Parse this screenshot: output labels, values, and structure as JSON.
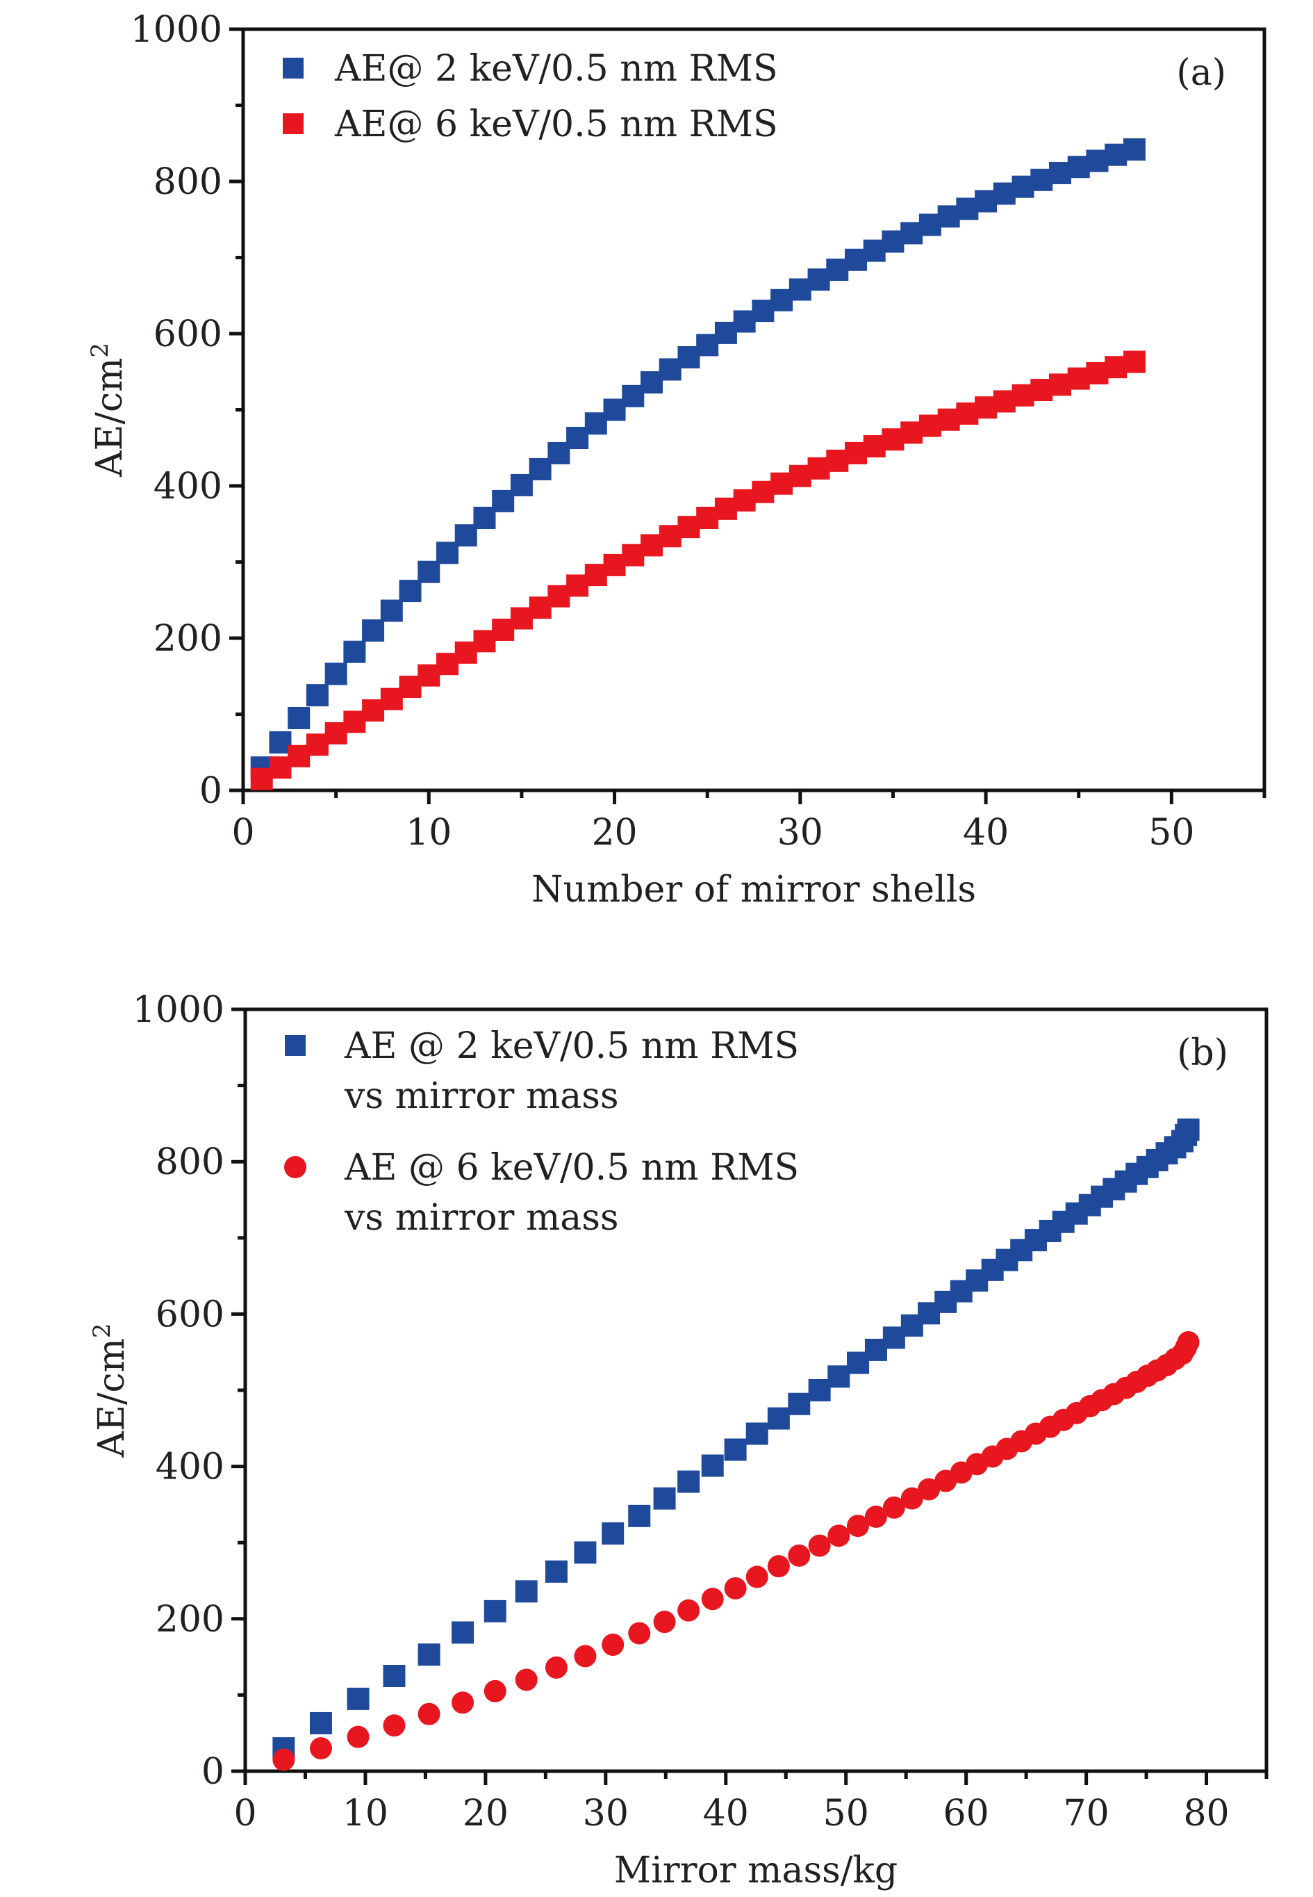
{
  "colors": {
    "blue": "#1f4a9c",
    "red": "#e8161e",
    "axis": "#111111"
  },
  "chart_data": [
    {
      "type": "scatter",
      "panel_label": "(a)",
      "xlabel": "Number of mirror shells",
      "ylabel": "AE/cm",
      "ylabel_sup": "2",
      "xlim": [
        0,
        55
      ],
      "ylim": [
        0,
        1000
      ],
      "xticks": [
        0,
        10,
        20,
        30,
        40,
        50
      ],
      "yticks": [
        0,
        200,
        400,
        600,
        800,
        1000
      ],
      "legend_placement": "top-left",
      "series": [
        {
          "name": "AE@ 2 keV/0.5 nm RMS",
          "marker": "square",
          "color": "#1f4a9c",
          "x": [
            1,
            2,
            3,
            4,
            5,
            6,
            7,
            8,
            9,
            10,
            11,
            12,
            13,
            14,
            15,
            16,
            17,
            18,
            19,
            20,
            21,
            22,
            23,
            24,
            25,
            26,
            27,
            28,
            29,
            30,
            31,
            32,
            33,
            34,
            35,
            36,
            37,
            38,
            39,
            40,
            41,
            42,
            43,
            44,
            45,
            46,
            47,
            48
          ],
          "y": [
            30,
            63,
            95,
            125,
            153,
            182,
            210,
            236,
            262,
            287,
            312,
            335,
            358,
            380,
            401,
            422,
            443,
            463,
            482,
            500,
            518,
            536,
            553,
            569,
            585,
            601,
            616,
            630,
            644,
            658,
            671,
            684,
            697,
            709,
            721,
            732,
            743,
            754,
            764,
            774,
            784,
            793,
            802,
            811,
            819,
            827,
            835,
            842
          ]
        },
        {
          "name": "AE@ 6 keV/0.5 nm RMS",
          "marker": "square",
          "color": "#e8161e",
          "x": [
            1,
            2,
            3,
            4,
            5,
            6,
            7,
            8,
            9,
            10,
            11,
            12,
            13,
            14,
            15,
            16,
            17,
            18,
            19,
            20,
            21,
            22,
            23,
            24,
            25,
            26,
            27,
            28,
            29,
            30,
            31,
            32,
            33,
            34,
            35,
            36,
            37,
            38,
            39,
            40,
            41,
            42,
            43,
            44,
            45,
            46,
            47,
            48
          ],
          "y": [
            15,
            30,
            45,
            60,
            75,
            90,
            105,
            120,
            136,
            151,
            166,
            181,
            196,
            211,
            226,
            240,
            255,
            269,
            283,
            296,
            309,
            322,
            334,
            346,
            358,
            370,
            381,
            392,
            403,
            413,
            423,
            433,
            443,
            452,
            461,
            470,
            479,
            487,
            495,
            503,
            511,
            519,
            526,
            533,
            541,
            548,
            556,
            563
          ]
        }
      ]
    },
    {
      "type": "scatter",
      "panel_label": "(b)",
      "xlabel": "Mirror mass/kg",
      "ylabel": "AE/cm",
      "ylabel_sup": "2",
      "xlim": [
        0,
        85
      ],
      "ylim": [
        0,
        1000
      ],
      "xticks": [
        0,
        10,
        20,
        30,
        40,
        50,
        60,
        70,
        80
      ],
      "yticks": [
        0,
        200,
        400,
        600,
        800,
        1000
      ],
      "legend_placement": "top-left",
      "series": [
        {
          "name": "AE @ 2 keV/0.5 nm RMS",
          "name_line2": "vs mirror mass",
          "marker": "square",
          "color": "#1f4a9c",
          "x": [
            3.2,
            6.3,
            9.4,
            12.4,
            15.3,
            18.1,
            20.8,
            23.4,
            25.9,
            28.3,
            30.6,
            32.8,
            34.9,
            36.9,
            38.9,
            40.8,
            42.6,
            44.4,
            46.1,
            47.8,
            49.4,
            51.0,
            52.5,
            54.0,
            55.5,
            56.9,
            58.3,
            59.6,
            60.9,
            62.2,
            63.4,
            64.6,
            65.8,
            67.0,
            68.1,
            69.2,
            70.3,
            71.3,
            72.3,
            73.3,
            74.2,
            75.1,
            75.9,
            76.7,
            77.4,
            78.0,
            78.3,
            78.5
          ],
          "y": [
            30,
            63,
            95,
            125,
            153,
            182,
            210,
            236,
            262,
            287,
            312,
            335,
            358,
            380,
            401,
            422,
            443,
            463,
            482,
            500,
            518,
            536,
            553,
            569,
            585,
            601,
            616,
            630,
            644,
            658,
            671,
            684,
            697,
            709,
            721,
            732,
            743,
            754,
            764,
            774,
            784,
            793,
            802,
            811,
            819,
            827,
            835,
            842
          ]
        },
        {
          "name": "AE @ 6 keV/0.5 nm RMS",
          "name_line2": "vs mirror mass",
          "marker": "circle",
          "color": "#e8161e",
          "x": [
            3.2,
            6.3,
            9.4,
            12.4,
            15.3,
            18.1,
            20.8,
            23.4,
            25.9,
            28.3,
            30.6,
            32.8,
            34.9,
            36.9,
            38.9,
            40.8,
            42.6,
            44.4,
            46.1,
            47.8,
            49.4,
            51.0,
            52.5,
            54.0,
            55.5,
            56.9,
            58.3,
            59.6,
            60.9,
            62.2,
            63.4,
            64.6,
            65.8,
            67.0,
            68.1,
            69.2,
            70.3,
            71.3,
            72.3,
            73.3,
            74.2,
            75.1,
            75.9,
            76.7,
            77.4,
            78.0,
            78.3,
            78.5
          ],
          "y": [
            15,
            30,
            45,
            60,
            75,
            90,
            105,
            120,
            136,
            151,
            166,
            181,
            196,
            211,
            226,
            240,
            255,
            269,
            283,
            296,
            309,
            322,
            334,
            346,
            358,
            370,
            381,
            392,
            403,
            413,
            423,
            433,
            443,
            452,
            461,
            470,
            479,
            487,
            495,
            503,
            511,
            519,
            526,
            533,
            541,
            548,
            556,
            563
          ]
        }
      ]
    }
  ]
}
